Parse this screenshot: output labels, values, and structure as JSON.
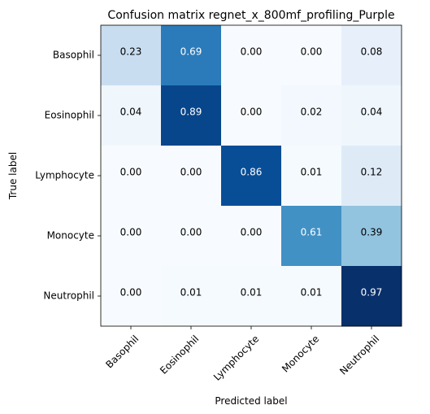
{
  "chart_data": {
    "type": "heatmap",
    "title": "Confusion matrix regnet_x_800mf_profiling_Purple",
    "xlabel": "Predicted label",
    "ylabel": "True label",
    "x_categories": [
      "Basophil",
      "Eosinophil",
      "Lymphocyte",
      "Monocyte",
      "Neutrophil"
    ],
    "y_categories": [
      "Basophil",
      "Eosinophil",
      "Lymphocyte",
      "Monocyte",
      "Neutrophil"
    ],
    "values": [
      [
        0.23,
        0.69,
        0.0,
        0.0,
        0.08
      ],
      [
        0.04,
        0.89,
        0.0,
        0.02,
        0.04
      ],
      [
        0.0,
        0.0,
        0.86,
        0.01,
        0.12
      ],
      [
        0.0,
        0.0,
        0.0,
        0.61,
        0.39
      ],
      [
        0.0,
        0.01,
        0.01,
        0.01,
        0.97
      ]
    ],
    "value_format": "0.00",
    "colormap": "Blues",
    "vmin": 0,
    "vmax": 0.97,
    "x_tick_rotation": 45
  }
}
